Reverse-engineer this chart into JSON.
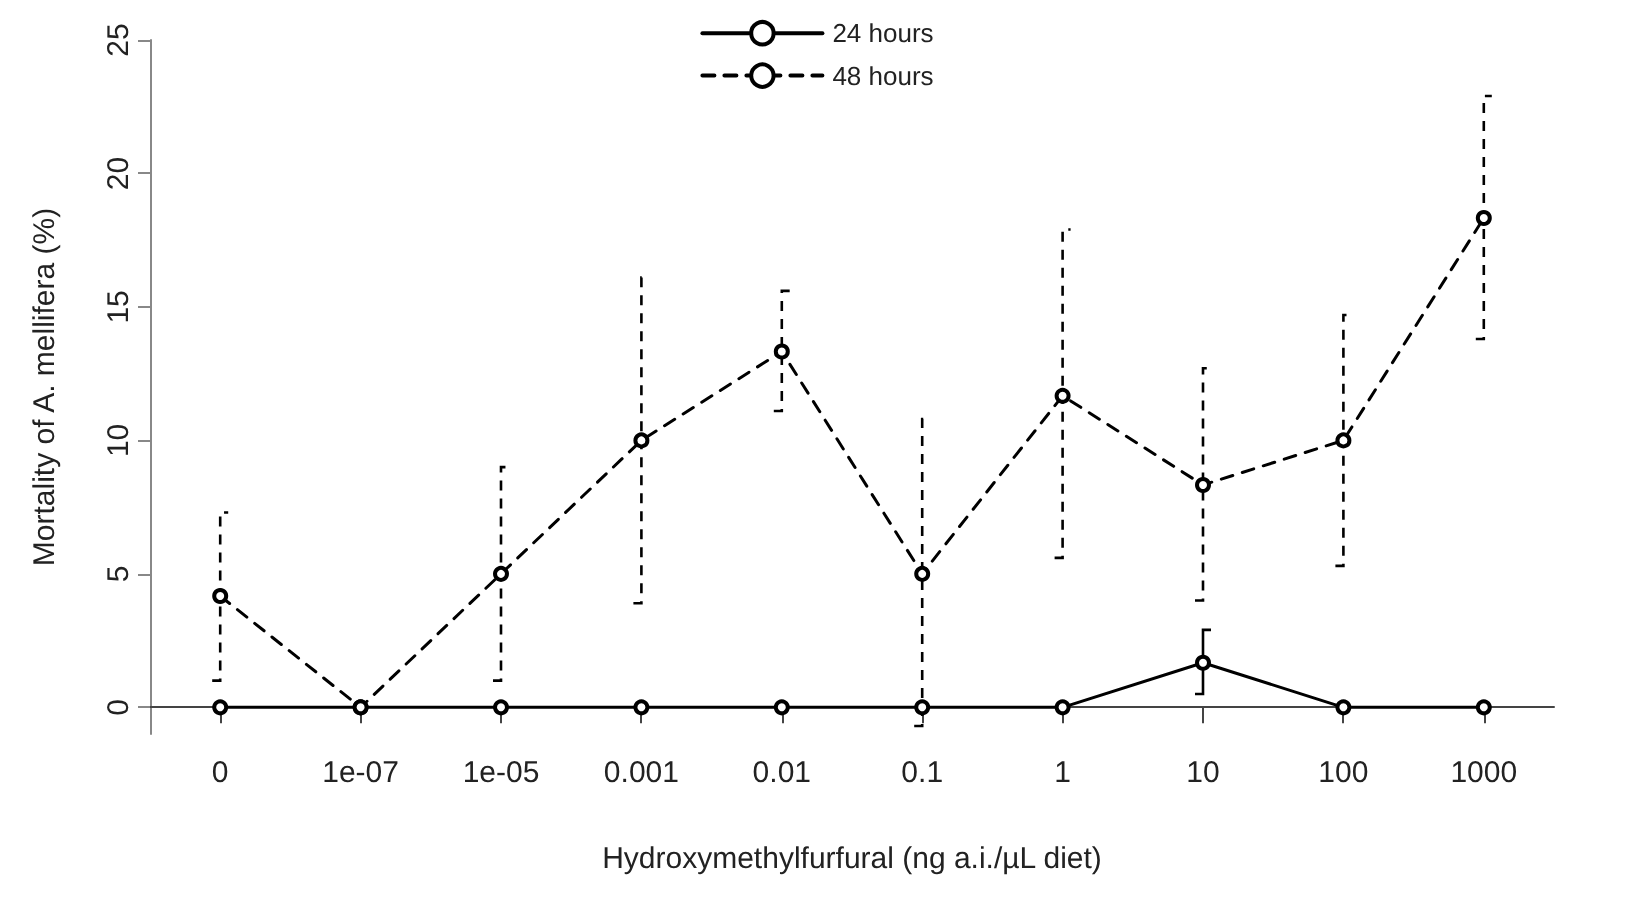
{
  "chart_data": {
    "type": "line",
    "xlabel": "Hydroxymethylfurfural (ng a.i./µL diet)",
    "ylabel": "Mortality of A. mellifera (%)",
    "categories": [
      "0",
      "1e-07",
      "1e-05",
      "0.001",
      "0.01",
      "0.1",
      "1",
      "10",
      "100",
      "1000"
    ],
    "series": [
      {
        "name": "24 hours",
        "color": "#000000",
        "line_style": "solid",
        "values": [
          0,
          0,
          0,
          0,
          0,
          0,
          0,
          1.67,
          0,
          0
        ],
        "errors": [
          null,
          null,
          null,
          null,
          null,
          null,
          null,
          [
            0.5,
            2.9
          ],
          null,
          null
        ]
      },
      {
        "name": "48 hours",
        "color": "#000000",
        "line_style": "dashed",
        "values": [
          4.17,
          0,
          5,
          10,
          13.33,
          5,
          11.67,
          8.33,
          10,
          18.33
        ],
        "errors": [
          [
            1.0,
            7.3
          ],
          null,
          [
            1.0,
            9.0
          ],
          [
            3.9,
            16.1
          ],
          [
            11.1,
            15.6
          ],
          [
            -0.7,
            10.8
          ],
          [
            5.6,
            17.9
          ],
          [
            4.0,
            12.7
          ],
          [
            5.3,
            14.7
          ],
          [
            13.8,
            22.9
          ]
        ]
      }
    ],
    "ylim": [
      -1,
      25
    ],
    "yticks": [
      0,
      5,
      10,
      15,
      20,
      25
    ],
    "grid": false,
    "legend": "top",
    "marker": "circle"
  }
}
